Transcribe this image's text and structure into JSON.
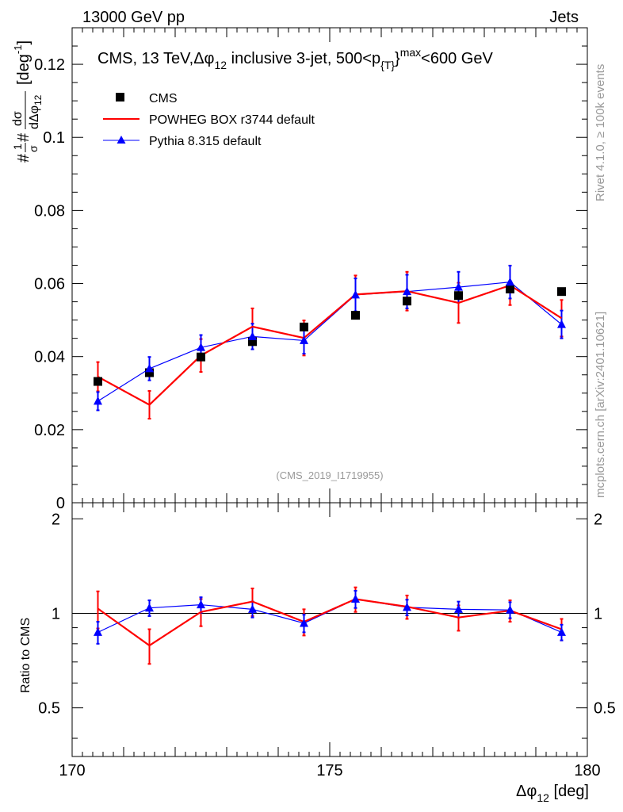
{
  "header": {
    "left": "13000 GeV pp",
    "right": "Jets"
  },
  "side_labels": {
    "rivet": "Rivet 4.1.0, ≥ 100k events",
    "mcplots": "mcplots.cern.ch [arXiv:2401.10621]"
  },
  "chart_data": {
    "type": "scatter",
    "title": "CMS, 13 TeV,Δφ₁₂ inclusive 3-jet, 500<p₂{T}₂max<600 GeV",
    "title_parts": {
      "a": "CMS, 13 TeV,",
      "dphi": "Δφ",
      "sub12": "12",
      "b": " inclusive 3-jet, 500<p",
      "subT": "{T}",
      "supmax": "}",
      "max": "max",
      "c": "<600 GeV"
    },
    "analysis_id": "(CMS_2019_I1719955)",
    "xlabel": {
      "main": "Δφ",
      "sub": "12",
      "unit": " [deg]"
    },
    "ylabel_main": {
      "pre": "#",
      "frac1_num": "1",
      "frac1_den": "σ",
      "mid": "#",
      "frac2_num": "dσ",
      "frac2_den": "dΔφ",
      "den_sub": "12",
      "unit": "[deg",
      "unit_sup": "-1",
      "unit_close": "]"
    },
    "ylabel_ratio": "Ratio to CMS",
    "xlim": [
      170,
      180
    ],
    "ylim_main": [
      0,
      0.13
    ],
    "ylim_ratio": [
      0.35,
      2.25
    ],
    "x_ticks": [
      "170",
      "175",
      "180"
    ],
    "y_ticks_main": [
      "0",
      "0.02",
      "0.04",
      "0.06",
      "0.08",
      "0.1",
      "0.12"
    ],
    "y_ticks_ratio": [
      "0.5",
      "1",
      "2"
    ],
    "x": [
      170.5,
      171.5,
      172.5,
      173.5,
      174.5,
      175.5,
      176.5,
      177.5,
      178.5,
      179.5
    ],
    "legend": [
      "CMS",
      "POWHEG BOX r3744 default",
      "Pythia 8.315 default"
    ],
    "series": [
      {
        "name": "CMS",
        "color": "#000000",
        "values": [
          0.0332,
          0.0356,
          0.0399,
          0.0441,
          0.0481,
          0.0513,
          0.0552,
          0.0567,
          0.0585,
          0.0578
        ]
      },
      {
        "name": "POWHEG BOX r3744 default",
        "color": "#ff0000",
        "values": [
          0.0345,
          0.0268,
          0.0403,
          0.0482,
          0.0451,
          0.057,
          0.0579,
          0.0547,
          0.0595,
          0.0505
        ],
        "errors": [
          0.004,
          0.0038,
          0.0045,
          0.005,
          0.0048,
          0.0052,
          0.0053,
          0.0055,
          0.0054,
          0.005
        ],
        "ratio": [
          1.035,
          0.79,
          1.01,
          1.09,
          0.94,
          1.11,
          1.05,
          0.97,
          1.02,
          0.89
        ],
        "ratio_errors": [
          0.14,
          0.1,
          0.1,
          0.11,
          0.09,
          0.1,
          0.09,
          0.09,
          0.08,
          0.07
        ]
      },
      {
        "name": "Pythia 8.315 default",
        "color": "#0000ff",
        "values": [
          0.0278,
          0.0367,
          0.0425,
          0.0455,
          0.0444,
          0.0569,
          0.0578,
          0.059,
          0.0604,
          0.0488
        ],
        "errors": [
          0.0025,
          0.0032,
          0.0034,
          0.0035,
          0.0036,
          0.0045,
          0.0046,
          0.0042,
          0.0045,
          0.0038
        ],
        "ratio": [
          0.87,
          1.04,
          1.065,
          1.03,
          0.93,
          1.11,
          1.045,
          1.03,
          1.025,
          0.87
        ],
        "ratio_errors": [
          0.07,
          0.06,
          0.06,
          0.06,
          0.06,
          0.07,
          0.06,
          0.06,
          0.06,
          0.05
        ]
      }
    ]
  }
}
